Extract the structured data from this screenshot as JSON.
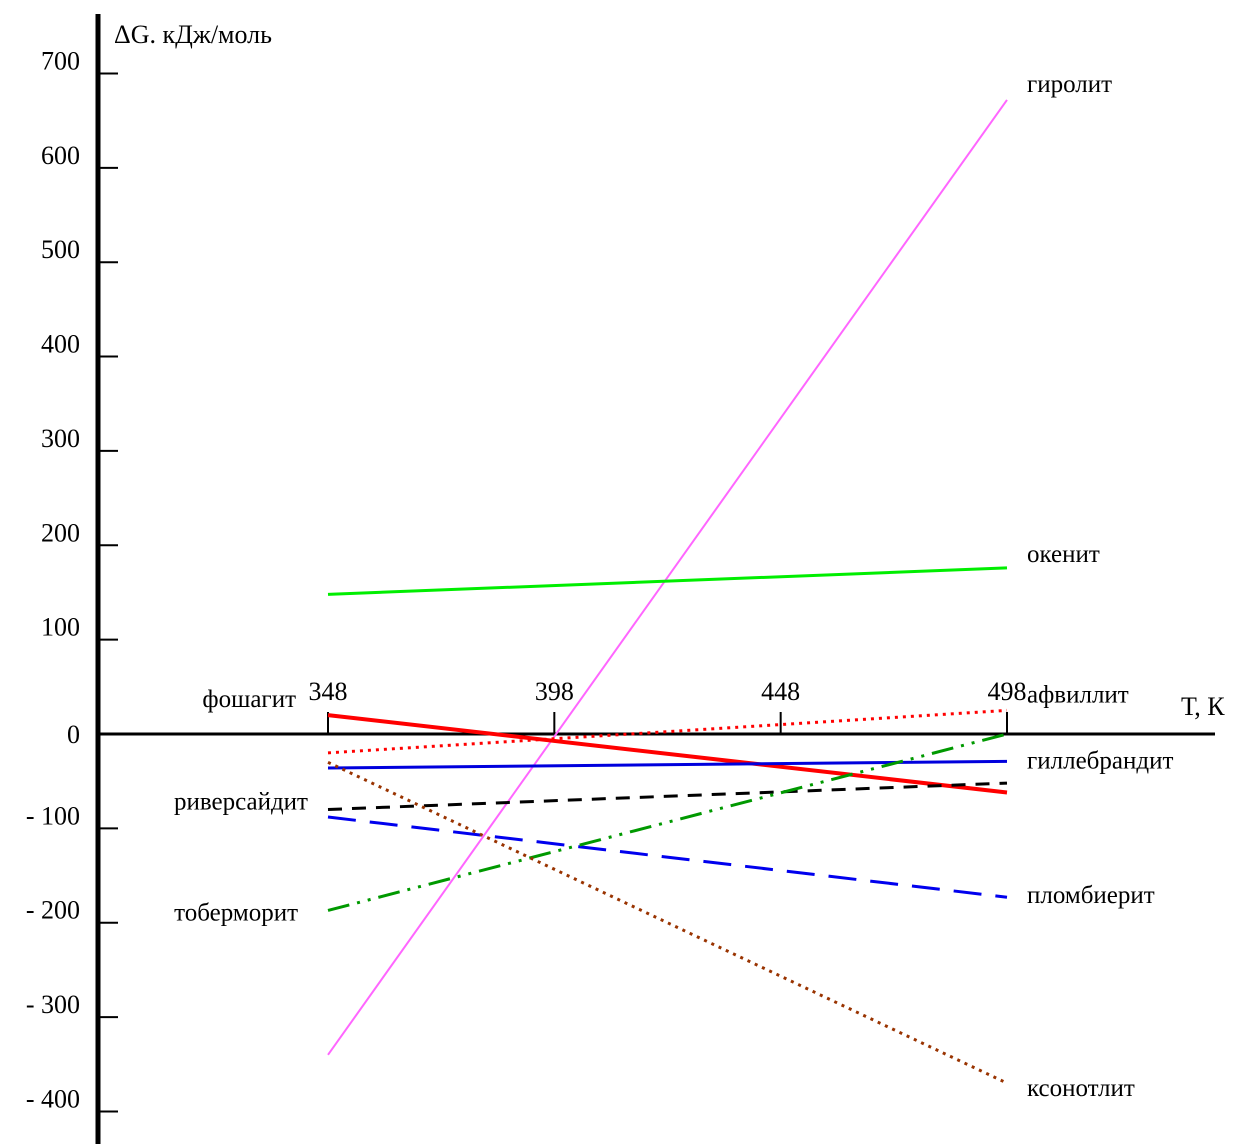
{
  "chart_data": {
    "type": "line",
    "title": "",
    "ylabel": "ΔG. кДж/моль",
    "xlabel": "Т, К",
    "xlim": [
      348,
      498
    ],
    "ylim": [
      -400,
      700
    ],
    "x_ticks": [
      348,
      398,
      448,
      498
    ],
    "x_tick_labels": [
      "348",
      "398",
      "448",
      "498"
    ],
    "y_ticks": [
      700,
      600,
      500,
      400,
      300,
      200,
      100,
      0,
      -100,
      -200,
      -300,
      -400
    ],
    "y_tick_labels": [
      "700",
      "600",
      "500",
      "400",
      "300",
      "200",
      "100",
      "0",
      "- 100",
      "- 200",
      "- 300",
      "- 400"
    ],
    "series": [
      {
        "name": "гиролит",
        "x": [
          348,
          498
        ],
        "y": [
          -340,
          672
        ],
        "color": "#ff66ff",
        "style": "solid",
        "width": 2,
        "label_side": "right"
      },
      {
        "name": "окенит",
        "x": [
          348,
          498
        ],
        "y": [
          148,
          176
        ],
        "color": "#00ee00",
        "style": "solid",
        "width": 3,
        "label_side": "right"
      },
      {
        "name": "фошагит",
        "x": [
          348,
          498
        ],
        "y": [
          20,
          -62
        ],
        "color": "#ff0000",
        "style": "solid",
        "width": 4,
        "label_side": "left"
      },
      {
        "name": "афвиллит",
        "x": [
          348,
          498
        ],
        "y": [
          -20,
          25
        ],
        "color": "#ff0000",
        "style": "dotted",
        "width": 3,
        "label_side": "right"
      },
      {
        "name": "гиллебрандит",
        "x": [
          348,
          498
        ],
        "y": [
          -36,
          -29
        ],
        "color": "#0000dd",
        "style": "solid",
        "width": 3,
        "label_side": "right"
      },
      {
        "name": "риверсайдит",
        "x": [
          348,
          498
        ],
        "y": [
          -80,
          -52
        ],
        "color": "#000000",
        "style": "dashed",
        "width": 3,
        "label_side": "left"
      },
      {
        "name": "пломбиерит",
        "x": [
          348,
          498
        ],
        "y": [
          -88,
          -173
        ],
        "color": "#0000ee",
        "style": "longdash",
        "width": 3,
        "label_side": "right"
      },
      {
        "name": "тоберморит",
        "x": [
          348,
          498
        ],
        "y": [
          -187,
          0
        ],
        "color": "#009900",
        "style": "dashdotdot",
        "width": 3,
        "label_side": "left"
      },
      {
        "name": "ксонотлит",
        "x": [
          348,
          498
        ],
        "y": [
          -30,
          -370
        ],
        "color": "#993300",
        "style": "dotted",
        "width": 3,
        "label_side": "right"
      }
    ]
  }
}
